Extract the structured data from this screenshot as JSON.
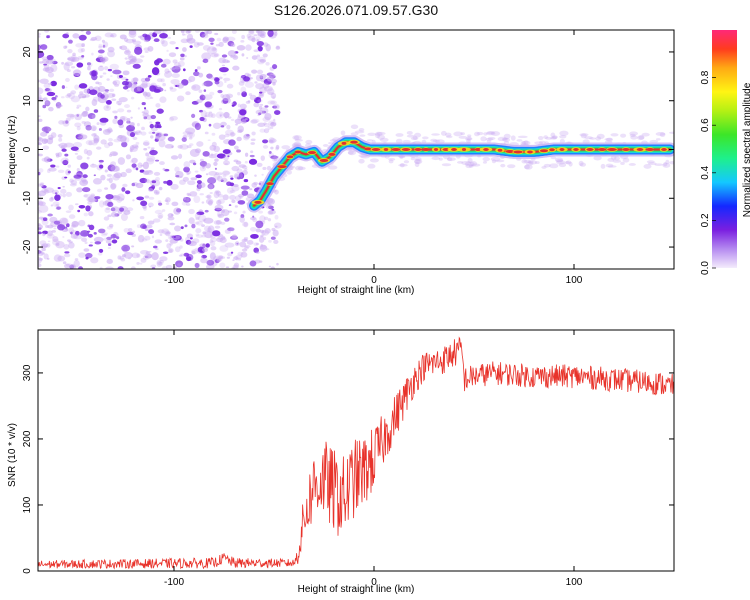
{
  "title": "S126.2026.071.09.57.G30",
  "colors": {
    "snr_line": "#e8322a",
    "track_core": "#e03030",
    "track_mid": "#33dd66",
    "track_outer": "#1f7fff",
    "scatter": "#7a2be0",
    "scatter_light": "#c9a8f2"
  },
  "chart_data": [
    {
      "type": "heatmap",
      "title": "S126.2026.071.09.57.G30",
      "xlabel": "Height of straight line (km)",
      "ylabel": "Frequency (Hz)",
      "xlim": [
        -168,
        150
      ],
      "ylim": [
        -24.5,
        24.5
      ],
      "x_ticks": [
        -100,
        0,
        100
      ],
      "x_tick_labels": [
        "-100",
        "0",
        "100"
      ],
      "y_ticks": [
        -20,
        -10,
        0,
        10,
        20
      ],
      "y_tick_labels": [
        "-20",
        "-10",
        "0",
        "10",
        "20"
      ],
      "noise_region_x": [
        -168,
        -48
      ],
      "track": {
        "x": [
          -60,
          -57,
          -54,
          -50,
          -46,
          -42,
          -38,
          -34,
          -30,
          -26,
          -22,
          -18,
          -14,
          -10,
          -6,
          -2,
          0,
          10,
          20,
          30,
          40,
          50,
          60,
          70,
          80,
          90,
          100,
          110,
          120,
          130,
          140,
          148
        ],
        "y": [
          -11.5,
          -10.5,
          -8.5,
          -5.5,
          -3.5,
          -1.5,
          -0.5,
          -1.0,
          -0.5,
          -2.5,
          -1.5,
          0.5,
          1.5,
          1.5,
          0.5,
          0.0,
          0.0,
          0.0,
          0.0,
          0.0,
          0.0,
          0.0,
          0.0,
          -0.5,
          -0.5,
          0.0,
          0.0,
          0.0,
          0.0,
          0.0,
          0.0,
          0.0
        ]
      },
      "colorbar": {
        "label": "Normalized spectral amplitude",
        "range": [
          0,
          1
        ],
        "ticks": [
          0.0,
          0.2,
          0.4,
          0.6,
          0.8
        ],
        "tick_labels": [
          "0.0",
          "0.2",
          "0.4",
          "0.6",
          "0.8"
        ]
      }
    },
    {
      "type": "line",
      "xlabel": "Height of straight line (km)",
      "ylabel": "SNR (10 * v/v)",
      "xlim": [
        -168,
        150
      ],
      "ylim": [
        0,
        365
      ],
      "x_ticks": [
        -100,
        0,
        100
      ],
      "x_tick_labels": [
        "-100",
        "0",
        "100"
      ],
      "y_ticks": [
        0,
        100,
        200,
        300
      ],
      "y_tick_labels": [
        "0",
        "100",
        "200",
        "300"
      ],
      "series": [
        {
          "name": "SNR",
          "trend_x": [
            -168,
            -80,
            -75,
            -70,
            -40,
            -38,
            -35,
            -30,
            -25,
            -20,
            -15,
            -10,
            -5,
            0,
            5,
            10,
            15,
            20,
            25,
            30,
            35,
            40,
            44,
            45,
            50,
            60,
            80,
            100,
            120,
            140,
            150
          ],
          "trend_y": [
            10,
            12,
            20,
            12,
            12,
            25,
            80,
            130,
            140,
            120,
            110,
            140,
            150,
            170,
            200,
            230,
            260,
            290,
            310,
            315,
            320,
            330,
            335,
            290,
            295,
            300,
            295,
            295,
            290,
            285,
            280
          ],
          "noise_amp": [
            6,
            8,
            8,
            8,
            6,
            15,
            40,
            55,
            60,
            65,
            65,
            60,
            55,
            50,
            40,
            35,
            30,
            25,
            22,
            22,
            22,
            22,
            22,
            20,
            18,
            18,
            18,
            18,
            18,
            18,
            18
          ]
        }
      ]
    }
  ]
}
